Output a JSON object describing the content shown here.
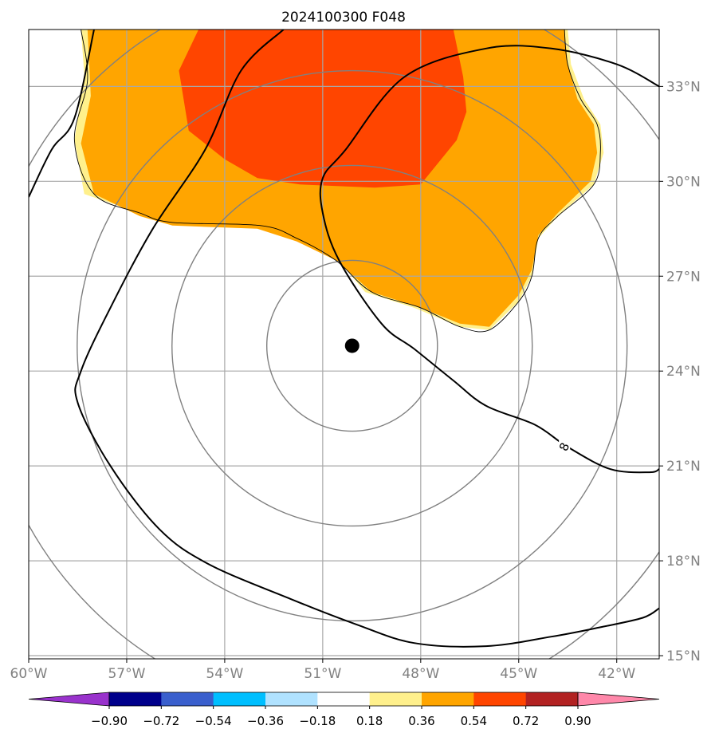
{
  "chart_data": {
    "type": "map",
    "title": "2024100300 F048",
    "lon_range": [
      -60,
      -40.7
    ],
    "lat_range": [
      14.9,
      34.8
    ],
    "x_ticks": [
      "60°W",
      "57°W",
      "54°W",
      "51°W",
      "48°W",
      "45°W",
      "42°W"
    ],
    "x_tick_values": [
      -60,
      -57,
      -54,
      -51,
      -48,
      -45,
      -42
    ],
    "y_ticks": [
      "15°N",
      "18°N",
      "21°N",
      "24°N",
      "27°N",
      "30°N",
      "33°N"
    ],
    "y_tick_values": [
      15,
      18,
      21,
      24,
      27,
      30,
      33
    ],
    "grid": true,
    "center_marker": {
      "lon": -50.1,
      "lat": 24.8
    },
    "range_rings_deg": [
      2.7,
      5.7,
      8.7,
      11.7
    ],
    "contour_label": "8",
    "colorbar": {
      "ticks": [
        "−0.90",
        "−0.72",
        "−0.54",
        "−0.36",
        "−0.18",
        "0.18",
        "0.36",
        "0.54",
        "0.72",
        "0.90"
      ],
      "colors": [
        "#9932cc",
        "#00008b",
        "#3a5fcd",
        "#00bfff",
        "#b0e2ff",
        "#ffffff",
        "#fff08c",
        "#ffa500",
        "#ff4500",
        "#b22222",
        "#ff88aa"
      ],
      "extend": "both"
    },
    "filled_regions": [
      {
        "level": "0.18–0.36",
        "color": "#fff08c",
        "points": [
          [
            -58.4,
            34.8
          ],
          [
            -58.3,
            33.4
          ],
          [
            -58.6,
            31.3
          ],
          [
            -58.3,
            29.6
          ],
          [
            -56.6,
            29.0
          ],
          [
            -55.6,
            28.7
          ],
          [
            -52.9,
            28.6
          ],
          [
            -51.8,
            28.2
          ],
          [
            -50.6,
            27.6
          ],
          [
            -49.7,
            26.5
          ],
          [
            -48.2,
            26.0
          ],
          [
            -46.8,
            25.4
          ],
          [
            -45.9,
            25.3
          ],
          [
            -45.0,
            26.2
          ],
          [
            -44.6,
            27.0
          ],
          [
            -44.4,
            28.2
          ],
          [
            -43.8,
            28.9
          ],
          [
            -42.7,
            29.9
          ],
          [
            -42.4,
            30.9
          ],
          [
            -42.5,
            31.8
          ],
          [
            -43.0,
            32.6
          ],
          [
            -43.4,
            33.7
          ],
          [
            -43.5,
            34.8
          ]
        ]
      },
      {
        "level": "0.36–0.54",
        "color": "#ffa500",
        "points": [
          [
            -58.2,
            34.8
          ],
          [
            -58.1,
            32.7
          ],
          [
            -58.4,
            31.2
          ],
          [
            -58.0,
            29.6
          ],
          [
            -56.6,
            28.9
          ],
          [
            -55.6,
            28.6
          ],
          [
            -53.0,
            28.5
          ],
          [
            -51.8,
            28.1
          ],
          [
            -50.6,
            27.5
          ],
          [
            -49.5,
            26.5
          ],
          [
            -48.0,
            26.0
          ],
          [
            -46.8,
            25.5
          ],
          [
            -45.9,
            25.4
          ],
          [
            -45.0,
            26.4
          ],
          [
            -44.6,
            27.2
          ],
          [
            -44.4,
            28.3
          ],
          [
            -43.8,
            29.0
          ],
          [
            -42.8,
            30.0
          ],
          [
            -42.6,
            30.9
          ],
          [
            -42.7,
            31.8
          ],
          [
            -43.2,
            32.6
          ],
          [
            -43.5,
            33.7
          ],
          [
            -43.6,
            34.8
          ]
        ]
      },
      {
        "level": "0.54–0.72",
        "color": "#ff4500",
        "points": [
          [
            -54.8,
            34.8
          ],
          [
            -55.4,
            33.5
          ],
          [
            -55.1,
            31.6
          ],
          [
            -54.0,
            30.7
          ],
          [
            -53.0,
            30.1
          ],
          [
            -51.7,
            29.9
          ],
          [
            -49.4,
            29.8
          ],
          [
            -48.0,
            29.9
          ],
          [
            -46.9,
            31.3
          ],
          [
            -46.6,
            32.2
          ],
          [
            -46.7,
            33.3
          ],
          [
            -47.0,
            34.8
          ]
        ]
      }
    ],
    "contour_lines": [
      {
        "name": "a",
        "points": [
          [
            -58.0,
            34.8
          ],
          [
            -58.6,
            32.0
          ],
          [
            -59.3,
            31.0
          ],
          [
            -60.0,
            29.5
          ]
        ]
      },
      {
        "name": "b",
        "points": [
          [
            -52.2,
            34.8
          ],
          [
            -53.5,
            33.5
          ],
          [
            -54.6,
            31.0
          ],
          [
            -56.2,
            28.5
          ],
          [
            -57.5,
            26.0
          ],
          [
            -58.4,
            24.0
          ],
          [
            -58.5,
            23.0
          ],
          [
            -57.5,
            21.0
          ],
          [
            -56.0,
            19.0
          ],
          [
            -54.5,
            17.9
          ],
          [
            -52.0,
            16.8
          ],
          [
            -50.0,
            16.0
          ],
          [
            -48.2,
            15.4
          ],
          [
            -46.0,
            15.3
          ],
          [
            -44.0,
            15.6
          ],
          [
            -42.5,
            15.9
          ],
          [
            -41.2,
            16.2
          ],
          [
            -40.7,
            16.5
          ]
        ]
      },
      {
        "name": "c",
        "points": [
          [
            -40.7,
            33.0
          ],
          [
            -42.0,
            33.7
          ],
          [
            -44.0,
            34.2
          ],
          [
            -46.0,
            34.2
          ],
          [
            -48.5,
            33.3
          ],
          [
            -50.3,
            31.0
          ],
          [
            -51.0,
            30.1
          ],
          [
            -51.0,
            29.0
          ],
          [
            -50.5,
            27.5
          ],
          [
            -49.2,
            25.5
          ],
          [
            -48.2,
            24.7
          ],
          [
            -47.0,
            23.7
          ],
          [
            -46.0,
            22.9
          ],
          [
            -44.5,
            22.3
          ],
          [
            -43.5,
            21.6
          ],
          [
            -42.2,
            20.9
          ],
          [
            -41.0,
            20.8
          ],
          [
            -40.7,
            20.9
          ]
        ]
      },
      {
        "name": "d",
        "points": [
          [
            -58.4,
            34.8
          ],
          [
            -58.2,
            33.2
          ],
          [
            -58.6,
            31.3
          ],
          [
            -58.0,
            29.6
          ],
          [
            -56.6,
            29.0
          ],
          [
            -55.6,
            28.7
          ],
          [
            -52.9,
            28.6
          ],
          [
            -51.8,
            28.2
          ],
          [
            -50.6,
            27.5
          ],
          [
            -49.5,
            26.5
          ],
          [
            -48.0,
            26.0
          ],
          [
            -46.8,
            25.4
          ],
          [
            -45.9,
            25.3
          ],
          [
            -45.0,
            26.2
          ],
          [
            -44.6,
            27.0
          ],
          [
            -44.4,
            28.2
          ],
          [
            -43.8,
            28.9
          ],
          [
            -42.7,
            29.9
          ],
          [
            -42.5,
            30.9
          ],
          [
            -42.6,
            31.8
          ],
          [
            -43.1,
            32.6
          ],
          [
            -43.5,
            33.7
          ],
          [
            -43.6,
            34.8
          ]
        ]
      }
    ]
  }
}
